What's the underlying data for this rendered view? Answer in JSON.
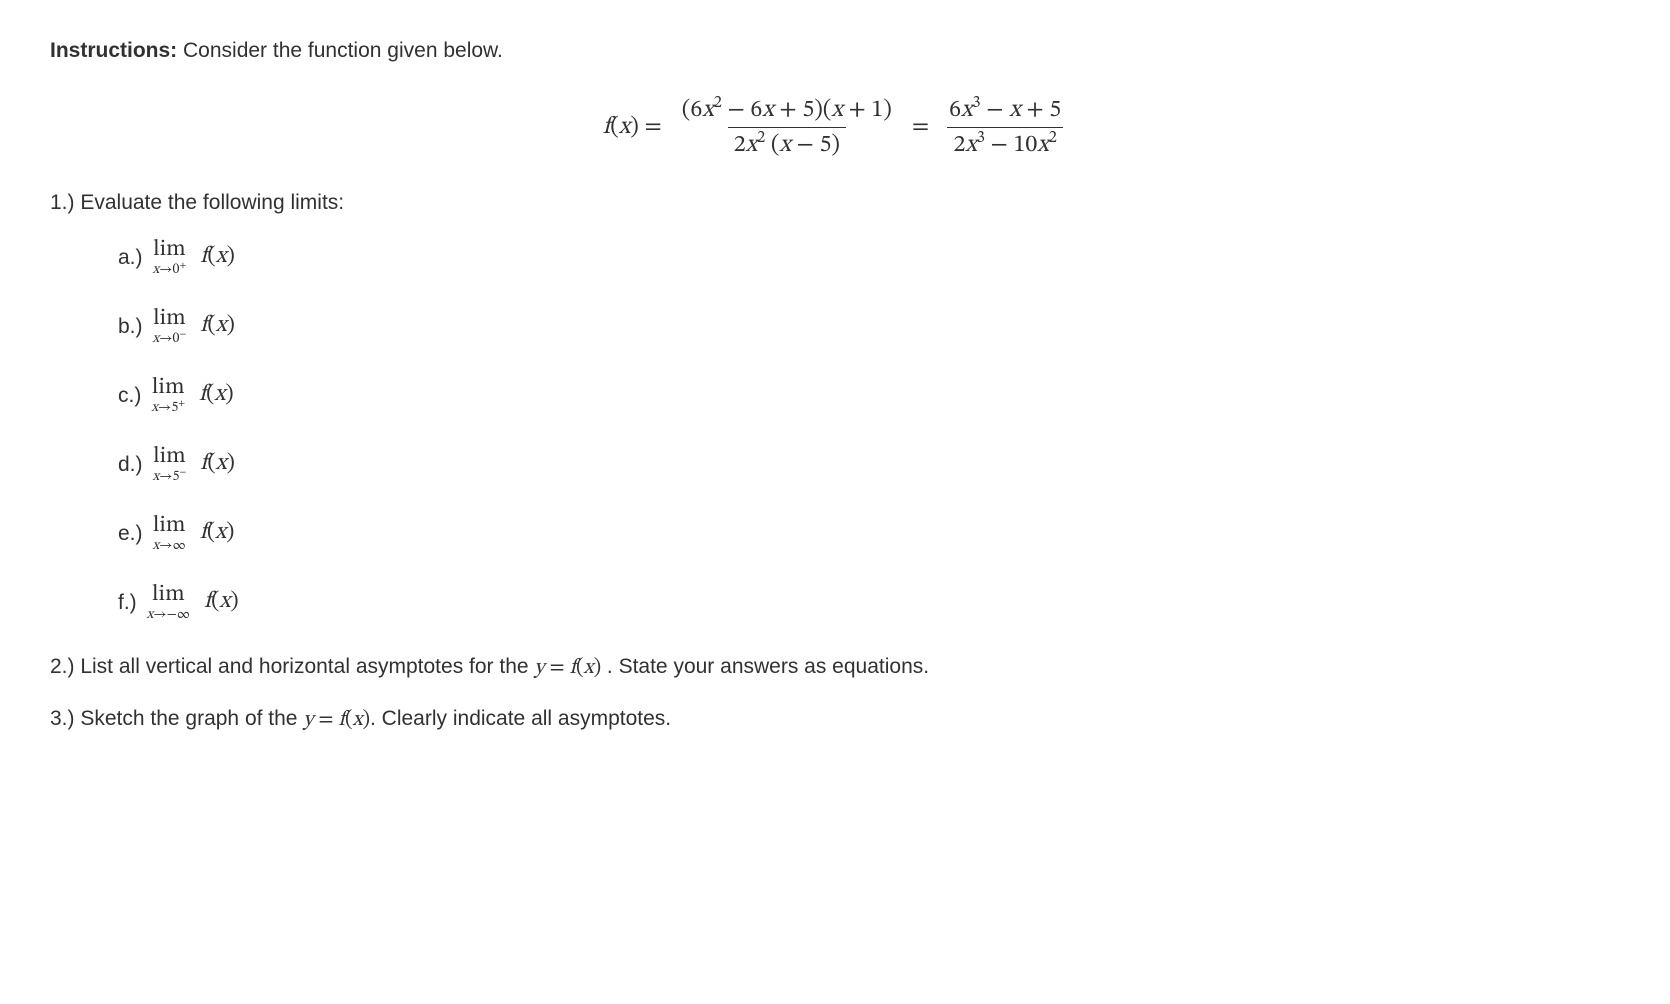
{
  "instructions_label": "Instructions:",
  "instructions_text": " Consider the function given below.",
  "formula": {
    "lhs": "f(x) =",
    "num1_a": "(6",
    "num1_b": " − 6",
    "num1_c": " + 5)(",
    "num1_d": " + 1)",
    "den1_a": "2",
    "den1_b": " (",
    "den1_c": " − 5)",
    "eq": "=",
    "num2_a": "6",
    "num2_b": " − ",
    "num2_c": " + 5",
    "den2_a": "2",
    "den2_b": " − 10"
  },
  "q1_text": "1.) Evaluate the following limits:",
  "limits": [
    {
      "label": "a.)",
      "approach_var": "x",
      "approach_arrow": "→0",
      "approach_sup": "+"
    },
    {
      "label": "b.)",
      "approach_var": "x",
      "approach_arrow": "→0",
      "approach_sup": "−"
    },
    {
      "label": "c.)",
      "approach_var": "x",
      "approach_arrow": "→5",
      "approach_sup": "+"
    },
    {
      "label": "d.)",
      "approach_var": "x",
      "approach_arrow": "→5",
      "approach_sup": "−"
    },
    {
      "label": "e.)",
      "approach_var": "x",
      "approach_arrow": "→∞",
      "approach_sup": ""
    },
    {
      "label": "f.)",
      "approach_var": "x",
      "approach_arrow": "→−∞",
      "approach_sup": ""
    }
  ],
  "lim_word": "lim",
  "fx_f": "f",
  "fx_open": "(",
  "fx_x": "x",
  "fx_close": ")",
  "q2_a": "2.) List all vertical and horizontal asymptotes for the ",
  "q2_eq_y": "y",
  "q2_eq_mid": " = ",
  "q2_eq_fx": "f(x)",
  "q2_b": " . State your answers as equations.",
  "q3_a": "3.) Sketch the graph of the ",
  "q3_eq_y": "y",
  "q3_eq_mid": " = ",
  "q3_eq_fx": "f(x)",
  "q3_b": ". Clearly indicate all asymptotes."
}
